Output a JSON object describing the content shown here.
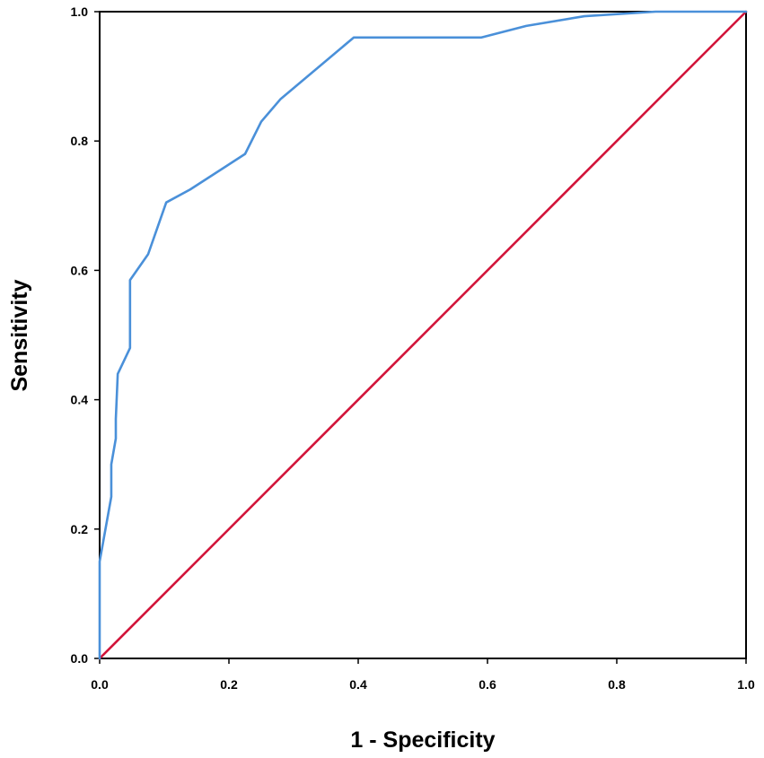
{
  "chart_data": {
    "type": "line",
    "xlabel": "1 - Specificity",
    "ylabel": "Sensitivity",
    "xlim": [
      0,
      1
    ],
    "ylim": [
      0,
      1
    ],
    "x_ticks": [
      "0.0",
      "0.2",
      "0.4",
      "0.6",
      "0.8",
      "1.0"
    ],
    "y_ticks": [
      "0.0",
      "0.2",
      "0.4",
      "0.6",
      "0.8",
      "1.0"
    ],
    "grid": false,
    "legend": "none",
    "series": [
      {
        "color": "#4a90d9",
        "x": [
          0.0,
          0.0,
          0.018,
          0.018,
          0.025,
          0.025,
          0.028,
          0.028,
          0.047,
          0.047,
          0.075,
          0.103,
          0.14,
          0.225,
          0.25,
          0.28,
          0.393,
          0.59,
          0.66,
          0.75,
          0.86,
          1.0
        ],
        "y": [
          0.0,
          0.15,
          0.25,
          0.3,
          0.34,
          0.37,
          0.44,
          0.44,
          0.48,
          0.585,
          0.625,
          0.705,
          0.725,
          0.78,
          0.83,
          0.865,
          0.96,
          0.96,
          0.978,
          0.993,
          1.0,
          1.0
        ]
      },
      {
        "color": "#d2143a",
        "x": [
          0,
          1
        ],
        "y": [
          0,
          1
        ]
      }
    ]
  }
}
